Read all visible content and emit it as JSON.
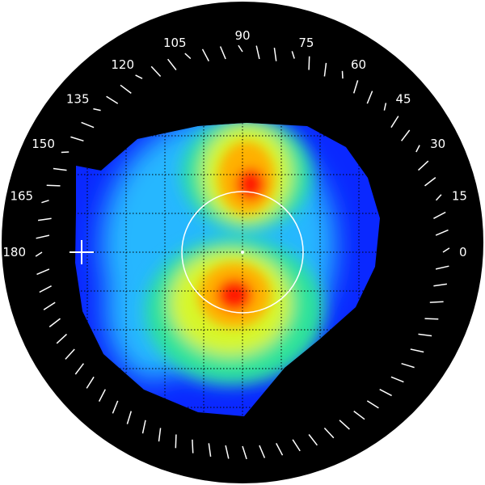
{
  "angle_labels": [
    {
      "text": "0",
      "deg": 0
    },
    {
      "text": "15",
      "deg": 15
    },
    {
      "text": "30",
      "deg": 30
    },
    {
      "text": "45",
      "deg": 45
    },
    {
      "text": "60",
      "deg": 60
    },
    {
      "text": "75",
      "deg": 75
    },
    {
      "text": "90",
      "deg": 90
    },
    {
      "text": "105",
      "deg": 105
    },
    {
      "text": "120",
      "deg": 120
    },
    {
      "text": "135",
      "deg": 135
    },
    {
      "text": "150",
      "deg": 150
    },
    {
      "text": "165",
      "deg": 165
    },
    {
      "text": "180",
      "deg": 180
    }
  ],
  "colors": {
    "background": "#000000",
    "low": "#0a28ff",
    "mid_low": "#27b7ff",
    "mid": "#2fe39a",
    "mid_high": "#d7f62b",
    "high": "#ffb000",
    "peak": "#ff1d00",
    "overlay": "#ffffff"
  },
  "icons": {
    "marker": "crosshair-icon"
  }
}
